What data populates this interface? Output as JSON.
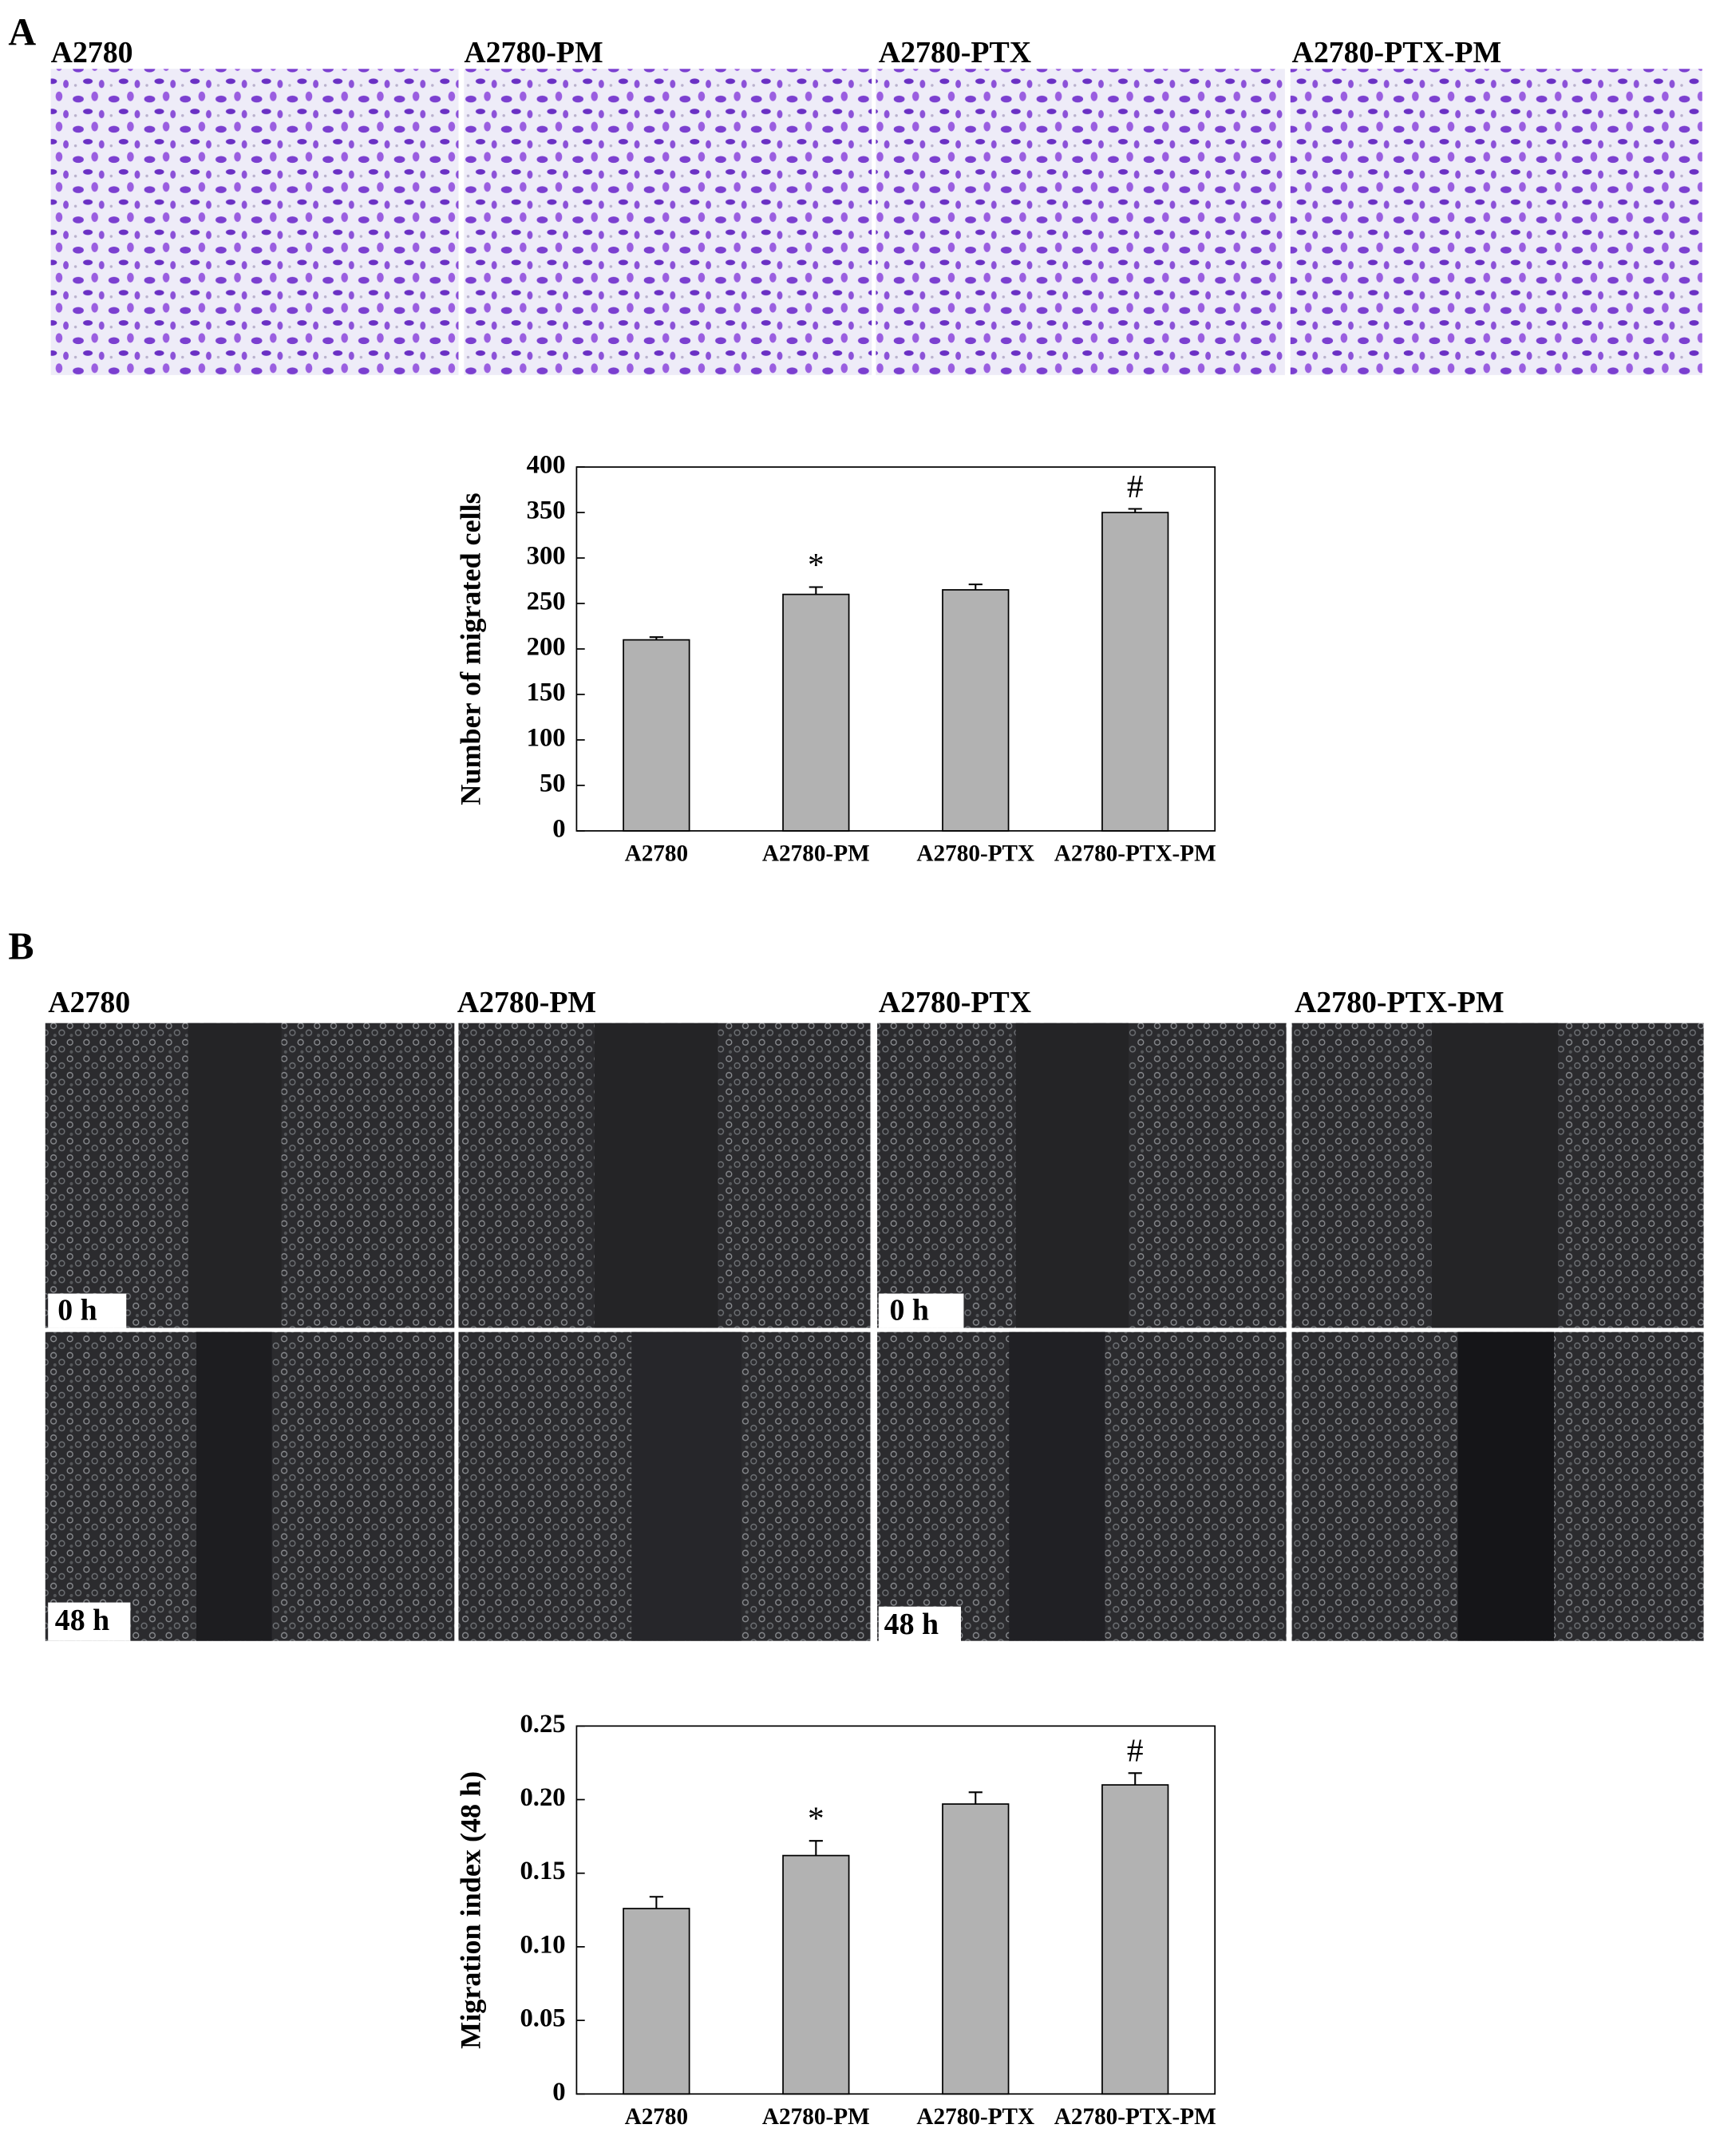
{
  "panels": [
    {
      "label": "A",
      "image_titles": [
        "A2780",
        "A2780-PM",
        "A2780-PTX",
        "A2780-PTX-PM"
      ]
    },
    {
      "label": "B",
      "image_titles": [
        "A2780",
        "A2780-PM",
        "A2780-PTX",
        "A2780-PTX-PM"
      ],
      "time_labels": [
        "0 h",
        "48 h"
      ]
    }
  ],
  "chart_data": [
    {
      "type": "bar",
      "y_label": "Number of migrated cells",
      "categories": [
        "A2780",
        "A2780-PM",
        "A2780-PTX",
        "A2780-PTX-PM"
      ],
      "values": [
        210,
        260,
        265,
        350
      ],
      "errors": [
        3,
        8,
        6,
        4
      ],
      "color": "#b2b2b2",
      "markers": [
        {
          "category": "A2780-PM",
          "text": "*"
        },
        {
          "category": "A2780-PTX-PM",
          "text": "#"
        }
      ],
      "ylim": [
        0,
        400
      ],
      "yticks": [
        0,
        50,
        100,
        150,
        200,
        250,
        300,
        350,
        400
      ]
    },
    {
      "type": "bar",
      "y_label": "Migration index (48 h)",
      "categories": [
        "A2780",
        "A2780-PM",
        "A2780-PTX",
        "A2780-PTX-PM"
      ],
      "values": [
        0.126,
        0.162,
        0.197,
        0.21
      ],
      "errors": [
        0.008,
        0.01,
        0.008,
        0.008
      ],
      "color": "#b2b2b2",
      "markers": [
        {
          "category": "A2780-PM",
          "text": "*"
        },
        {
          "category": "A2780-PTX-PM",
          "text": "#"
        }
      ],
      "ylim": [
        0,
        0.25
      ],
      "yticks": [
        0,
        0.05,
        {
          "value": 0.1,
          "label": "0.10"
        },
        0.15,
        {
          "value": 0.2,
          "label": "0.20"
        },
        0.25
      ]
    }
  ]
}
